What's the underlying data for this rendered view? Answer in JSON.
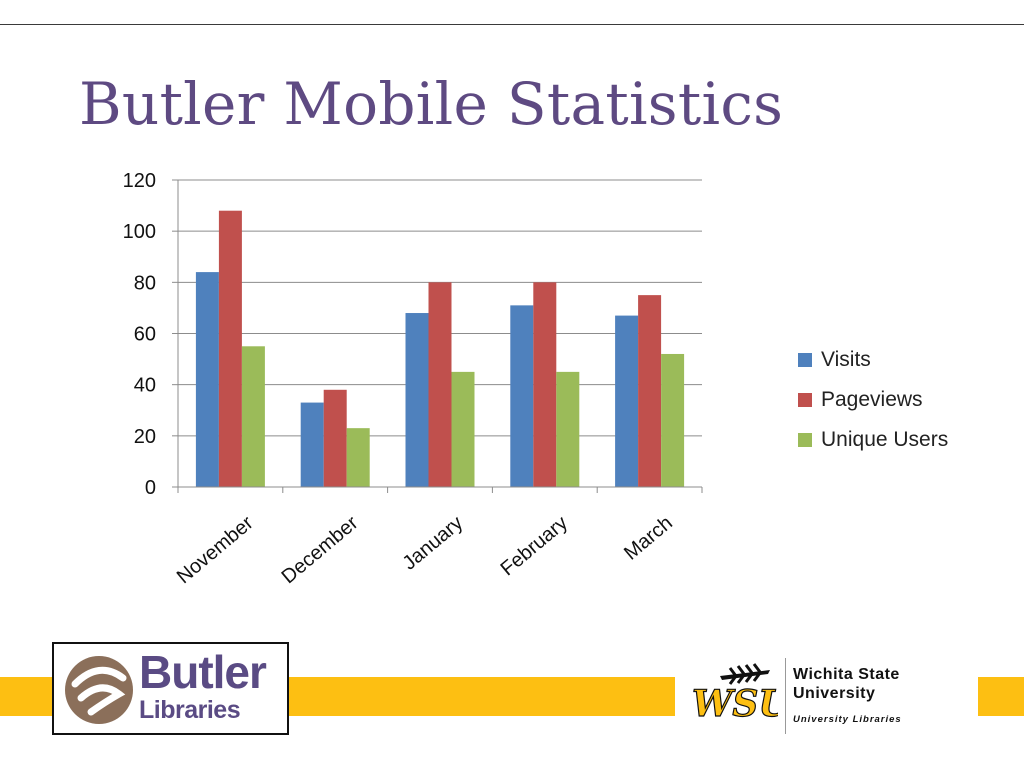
{
  "slide": {
    "title": "Butler Mobile Statistics"
  },
  "chart_data": {
    "type": "bar",
    "title": "",
    "xlabel": "",
    "ylabel": "",
    "categories": [
      "November",
      "December",
      "January",
      "February",
      "March"
    ],
    "series": [
      {
        "name": "Visits",
        "color": "#4f81bd",
        "values": [
          84,
          33,
          68,
          71,
          67
        ]
      },
      {
        "name": "Pageviews",
        "color": "#c0504d",
        "values": [
          108,
          38,
          80,
          80,
          75
        ]
      },
      {
        "name": "Unique Users",
        "color": "#9bbb59",
        "values": [
          55,
          23,
          45,
          45,
          52
        ]
      }
    ],
    "ylim": [
      0,
      120
    ],
    "yticks": [
      "0",
      "20",
      "40",
      "60",
      "80",
      "100",
      "120"
    ],
    "grid": true,
    "legend": "right"
  },
  "logos": {
    "butler": {
      "line1": "Butler",
      "line2": "Libraries",
      "text_color": "#5a4b84",
      "icon_color": "#8b6f5a"
    },
    "wsu": {
      "mark": "WSU",
      "line1": "Wichita State",
      "line2": "University",
      "line3": "University Libraries",
      "mark_color": "#fdbf12"
    }
  },
  "theme": {
    "accent_band": "#fdbf12",
    "title_color": "#5e4a82"
  }
}
